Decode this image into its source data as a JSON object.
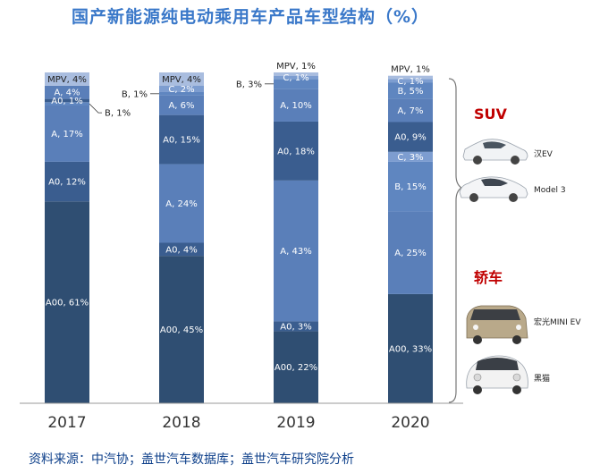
{
  "title": "国产新能源纯电动乘用车产品车型结构（%）",
  "source": "资料来源：中汽协；盖世汽车数据库；盖世汽车研究院分析",
  "colors": {
    "A00": "#2f4e72",
    "A0": "#3a5d8f",
    "A": "#5a7fb9",
    "B": "#5f86c0",
    "C": "#7d9dd0",
    "MPV": "#a9bddf",
    "title": "#3a78c9",
    "category": "#c00000"
  },
  "annotations": {
    "suv": "SUV",
    "sedan": "轿车",
    "cars": [
      {
        "label": "汉EV",
        "group": "suv",
        "icon": "car-white-sedan-icon"
      },
      {
        "label": "Model 3",
        "group": "suv",
        "icon": "car-white-sedan-icon"
      },
      {
        "label": "宏光MINI EV",
        "group": "sedan",
        "icon": "car-mini-khaki-icon"
      },
      {
        "label": "黑猫",
        "group": "sedan",
        "icon": "car-mini-white-icon"
      }
    ]
  },
  "chart_data": {
    "type": "bar",
    "stacked": true,
    "title": "国产新能源纯电动乘用车产品车型结构（%）",
    "categories": [
      "2017",
      "2018",
      "2019",
      "2020"
    ],
    "ylim": [
      0,
      100
    ],
    "grid": false,
    "bars": [
      {
        "year": "2017",
        "segments": [
          {
            "label": "A00, 61%",
            "value": 61,
            "group": "A00",
            "text_pos": "inside"
          },
          {
            "label": "A0, 12%",
            "value": 12,
            "group": "A0",
            "text_pos": "inside"
          },
          {
            "label": "A, 17%",
            "value": 17,
            "group": "A",
            "text_pos": "inside"
          },
          {
            "label": "B, 1%",
            "value": 1,
            "group": "B",
            "text_pos": "right"
          },
          {
            "label": "A0, 1%",
            "value": 1,
            "group": "A0",
            "text_pos": "inside"
          },
          {
            "label": "A, 4%",
            "value": 4,
            "group": "A",
            "text_pos": "inside"
          },
          {
            "label": "MPV, 4%",
            "value": 4,
            "group": "MPV",
            "text_pos": "inside"
          }
        ]
      },
      {
        "year": "2018",
        "segments": [
          {
            "label": "A00, 45%",
            "value": 45,
            "group": "A00",
            "text_pos": "inside"
          },
          {
            "label": "A0, 4%",
            "value": 4,
            "group": "A0",
            "text_pos": "inside"
          },
          {
            "label": "A, 24%",
            "value": 24,
            "group": "A",
            "text_pos": "inside"
          },
          {
            "label": "A0, 15%",
            "value": 15,
            "group": "A0",
            "text_pos": "inside"
          },
          {
            "label": "A, 6%",
            "value": 6,
            "group": "A",
            "text_pos": "inside"
          },
          {
            "label": "B, 1%",
            "value": 1,
            "group": "B",
            "text_pos": "left"
          },
          {
            "label": "C, 2%",
            "value": 2,
            "group": "C",
            "text_pos": "inside"
          },
          {
            "label": "MPV, 4%",
            "value": 4,
            "group": "MPV",
            "text_pos": "inside"
          }
        ]
      },
      {
        "year": "2019",
        "segments": [
          {
            "label": "A00, 22%",
            "value": 22,
            "group": "A00",
            "text_pos": "inside"
          },
          {
            "label": "A0, 3%",
            "value": 3,
            "group": "A0",
            "text_pos": "inside"
          },
          {
            "label": "A, 43%",
            "value": 43,
            "group": "A",
            "text_pos": "inside"
          },
          {
            "label": "A0, 18%",
            "value": 18,
            "group": "A0",
            "text_pos": "inside"
          },
          {
            "label": "A, 10%",
            "value": 10,
            "group": "A",
            "text_pos": "inside"
          },
          {
            "label": "B, 3%",
            "value": 3,
            "group": "B",
            "text_pos": "left"
          },
          {
            "label": "C, 1%",
            "value": 1,
            "group": "C",
            "text_pos": "inside"
          },
          {
            "label": "MPV, 1%",
            "value": 1,
            "group": "MPV",
            "text_pos": "above"
          }
        ]
      },
      {
        "year": "2020",
        "segments": [
          {
            "label": "A00, 33%",
            "value": 33,
            "group": "A00",
            "text_pos": "inside"
          },
          {
            "label": "A, 25%",
            "value": 25,
            "group": "A",
            "text_pos": "inside"
          },
          {
            "label": "B, 15%",
            "value": 15,
            "group": "B",
            "text_pos": "inside"
          },
          {
            "label": "C, 3%",
            "value": 3,
            "group": "C",
            "text_pos": "inside"
          },
          {
            "label": "A0, 9%",
            "value": 9,
            "group": "A0",
            "text_pos": "inside"
          },
          {
            "label": "A, 7%",
            "value": 7,
            "group": "A",
            "text_pos": "inside"
          },
          {
            "label": "B, 5%",
            "value": 5,
            "group": "B",
            "text_pos": "inside"
          },
          {
            "label": "C, 1%",
            "value": 1,
            "group": "C",
            "text_pos": "inside"
          },
          {
            "label": "MPV, 1%",
            "value": 1,
            "group": "MPV",
            "text_pos": "above"
          }
        ]
      }
    ]
  }
}
